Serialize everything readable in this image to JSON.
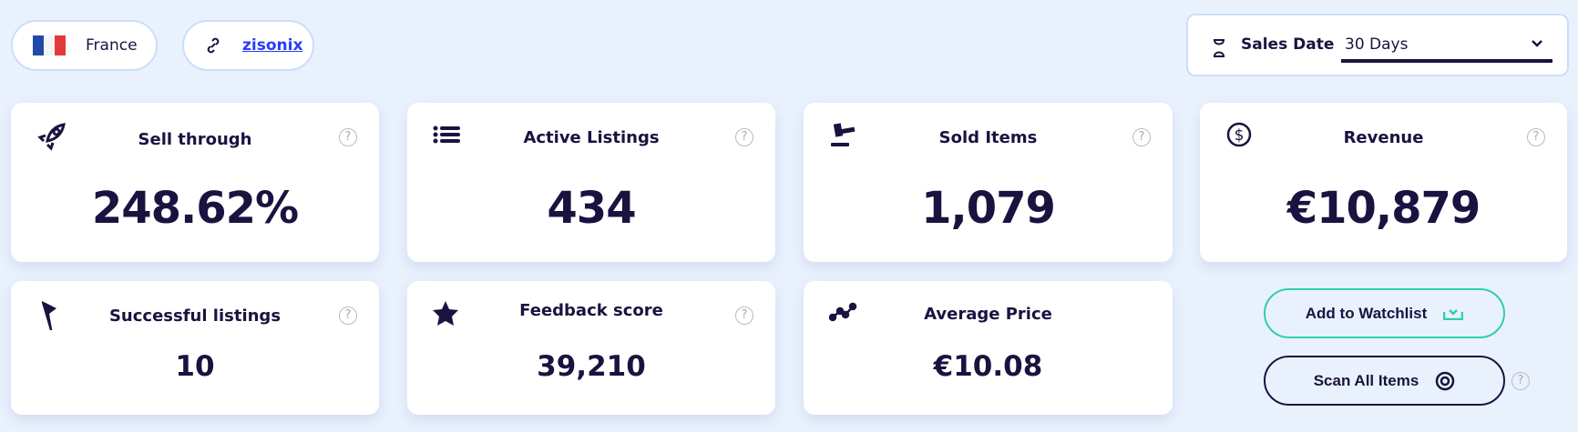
{
  "header": {
    "country": {
      "label": "France",
      "icon": "france-flag-icon"
    },
    "store": {
      "label": "zisonix",
      "icon": "link-icon"
    },
    "sales_date": {
      "label": "Sales Date",
      "value": "30 Days",
      "icon": "hourglass-icon"
    }
  },
  "cards": [
    {
      "title": "Sell through",
      "value": "248.62%",
      "icon": "rocket-icon",
      "help": "?"
    },
    {
      "title": "Active Listings",
      "value": "434",
      "icon": "list-icon",
      "help": "?"
    },
    {
      "title": "Sold Items",
      "value": "1,079",
      "icon": "gavel-icon",
      "help": "?"
    },
    {
      "title": "Revenue",
      "value": "€10,879",
      "icon": "dollar-circle-icon",
      "help": "?"
    },
    {
      "title": "Successful listings",
      "value": "10",
      "icon": "flag-icon",
      "help": "?"
    },
    {
      "title": "Feedback score",
      "value": "39,210",
      "icon": "star-icon",
      "help": "?"
    },
    {
      "title": "Average Price",
      "value": "€10.08",
      "icon": "trend-line-icon"
    }
  ],
  "actions": {
    "watchlist": "Add to Watchlist",
    "scan": "Scan All Items",
    "help": "?"
  },
  "colors": {
    "navy": "#1a1340",
    "teal": "#2ecfa9",
    "link": "#2a3cff",
    "background": "#e9f1fd"
  }
}
